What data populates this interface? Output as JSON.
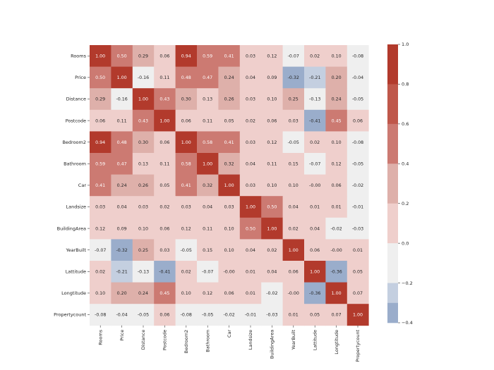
{
  "chart_data": {
    "type": "heatmap",
    "title": "",
    "variables": [
      "Rooms",
      "Price",
      "Distance",
      "Postcode",
      "Bedroom2",
      "Bathroom",
      "Car",
      "Landsize",
      "BuildingArea",
      "YearBuilt",
      "Lattitude",
      "Longtitude",
      "Propertycount"
    ],
    "matrix": [
      [
        1.0,
        0.5,
        0.29,
        0.06,
        0.94,
        0.59,
        0.41,
        0.03,
        0.12,
        -0.07,
        0.02,
        0.1,
        -0.08
      ],
      [
        0.5,
        1.0,
        -0.16,
        0.11,
        0.48,
        0.47,
        0.24,
        0.04,
        0.09,
        -0.32,
        -0.21,
        0.2,
        -0.04
      ],
      [
        0.29,
        -0.16,
        1.0,
        0.43,
        0.3,
        0.13,
        0.26,
        0.03,
        0.1,
        0.25,
        -0.13,
        0.24,
        -0.05
      ],
      [
        0.06,
        0.11,
        0.43,
        1.0,
        0.06,
        0.11,
        0.05,
        0.02,
        0.06,
        0.03,
        -0.41,
        0.45,
        0.06
      ],
      [
        0.94,
        0.48,
        0.3,
        0.06,
        1.0,
        0.58,
        0.41,
        0.03,
        0.12,
        -0.05,
        0.02,
        0.1,
        -0.08
      ],
      [
        0.59,
        0.47,
        0.13,
        0.11,
        0.58,
        1.0,
        0.32,
        0.04,
        0.11,
        0.15,
        -0.07,
        0.12,
        -0.05
      ],
      [
        0.41,
        0.24,
        0.26,
        0.05,
        0.41,
        0.32,
        1.0,
        0.03,
        0.1,
        0.1,
        -0.0,
        0.06,
        -0.02
      ],
      [
        0.03,
        0.04,
        0.03,
        0.02,
        0.03,
        0.04,
        0.03,
        1.0,
        0.5,
        0.04,
        0.01,
        0.01,
        -0.01
      ],
      [
        0.12,
        0.09,
        0.1,
        0.06,
        0.12,
        0.11,
        0.1,
        0.5,
        1.0,
        0.02,
        0.04,
        -0.02,
        -0.03
      ],
      [
        -0.07,
        -0.32,
        0.25,
        0.03,
        -0.05,
        0.15,
        0.1,
        0.04,
        0.02,
        1.0,
        0.06,
        -0.0,
        0.01
      ],
      [
        0.02,
        -0.21,
        -0.13,
        -0.41,
        0.02,
        -0.07,
        -0.0,
        0.01,
        0.04,
        0.06,
        1.0,
        -0.36,
        0.05
      ],
      [
        0.1,
        0.2,
        0.24,
        0.45,
        0.1,
        0.12,
        0.06,
        0.01,
        -0.02,
        -0.0,
        -0.36,
        1.0,
        0.07
      ],
      [
        -0.08,
        -0.04,
        -0.05,
        0.06,
        -0.08,
        -0.05,
        -0.02,
        -0.01,
        -0.03,
        0.01,
        0.05,
        0.07,
        1.0
      ]
    ],
    "color_range": [
      -0.4,
      1.0
    ],
    "colorbar_ticks": [
      1.0,
      0.8,
      0.6,
      0.4,
      0.2,
      0.0,
      -0.2,
      -0.4
    ],
    "colorbar_tick_labels": [
      "1.0",
      "0.8",
      "0.6",
      "0.4",
      "0.2",
      "0.0",
      "−0.2",
      "−0.4"
    ],
    "color_bins": [
      {
        "min": 0.8,
        "max": 1.0,
        "color": "#b23a2c"
      },
      {
        "min": 0.6,
        "max": 0.8,
        "color": "#bf574a"
      },
      {
        "min": 0.4,
        "max": 0.6,
        "color": "#cc7a72"
      },
      {
        "min": 0.2,
        "max": 0.4,
        "color": "#deb0aa"
      },
      {
        "min": 0.0,
        "max": 0.2,
        "color": "#efcfcc"
      },
      {
        "min": -0.2,
        "max": 0.0,
        "color": "#efefef"
      },
      {
        "min": -0.3,
        "max": -0.2,
        "color": "#c4cfe0"
      },
      {
        "min": -0.4,
        "max": -0.3,
        "color": "#9aadcb"
      }
    ],
    "annotation_format": "2 decimals",
    "grid": false,
    "colorbar_position": "right"
  }
}
